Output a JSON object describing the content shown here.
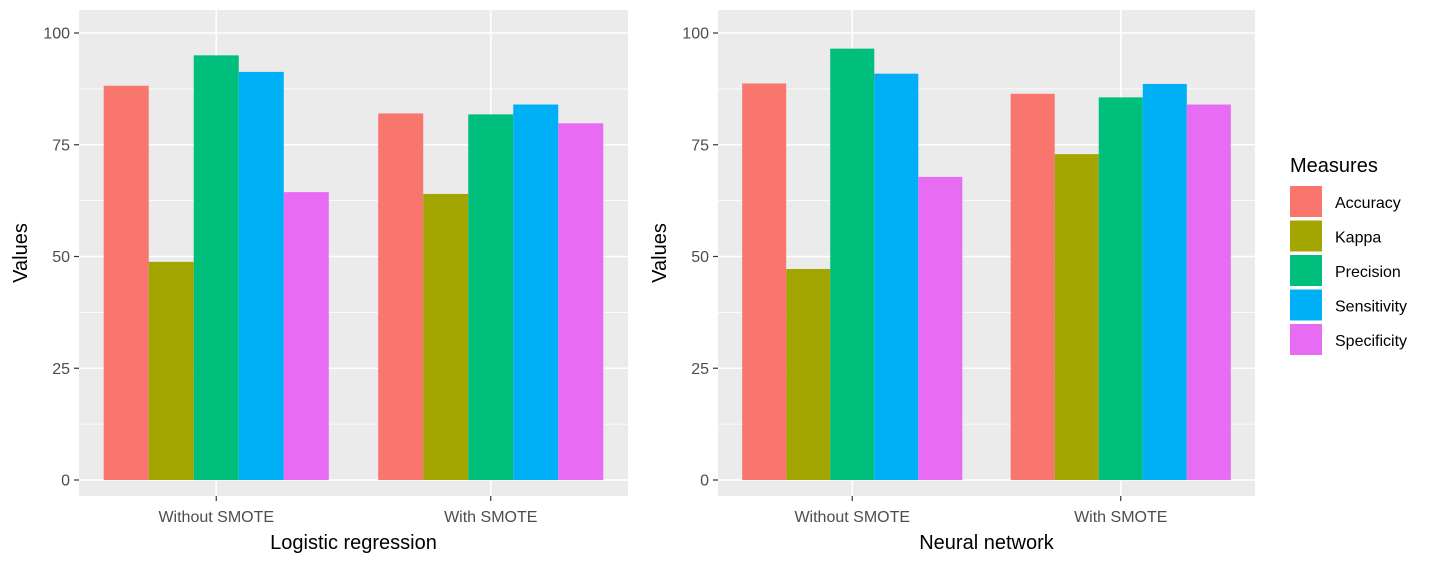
{
  "legend": {
    "title": "Measures",
    "position": "right",
    "items": [
      {
        "label": "Accuracy",
        "color": "#F8766D"
      },
      {
        "label": "Kappa",
        "color": "#A3A500"
      },
      {
        "label": "Precision",
        "color": "#00BF7D"
      },
      {
        "label": "Sensitivity",
        "color": "#00B0F6"
      },
      {
        "label": "Specificity",
        "color": "#E76BF3"
      }
    ]
  },
  "chart_data": [
    {
      "type": "bar",
      "title": "",
      "xlabel": "Logistic regression",
      "ylabel": "Values",
      "ylim": [
        0,
        100
      ],
      "yticks": [
        0,
        25,
        50,
        75,
        100
      ],
      "grid": true,
      "categories": [
        "Without SMOTE",
        "With SMOTE"
      ],
      "series": [
        {
          "name": "Accuracy",
          "color": "#F8766D",
          "values": [
            88.2,
            82.0
          ]
        },
        {
          "name": "Kappa",
          "color": "#A3A500",
          "values": [
            48.8,
            64.0
          ]
        },
        {
          "name": "Precision",
          "color": "#00BF7D",
          "values": [
            95.0,
            81.8
          ]
        },
        {
          "name": "Sensitivity",
          "color": "#00B0F6",
          "values": [
            91.3,
            84.0
          ]
        },
        {
          "name": "Specificity",
          "color": "#E76BF3",
          "values": [
            64.4,
            79.8
          ]
        }
      ]
    },
    {
      "type": "bar",
      "title": "",
      "xlabel": "Neural network",
      "ylabel": "Values",
      "ylim": [
        0,
        100
      ],
      "yticks": [
        0,
        25,
        50,
        75,
        100
      ],
      "grid": true,
      "categories": [
        "Without SMOTE",
        "With SMOTE"
      ],
      "series": [
        {
          "name": "Accuracy",
          "color": "#F8766D",
          "values": [
            88.7,
            86.4
          ]
        },
        {
          "name": "Kappa",
          "color": "#A3A500",
          "values": [
            47.2,
            72.9
          ]
        },
        {
          "name": "Precision",
          "color": "#00BF7D",
          "values": [
            96.5,
            85.6
          ]
        },
        {
          "name": "Sensitivity",
          "color": "#00B0F6",
          "values": [
            90.9,
            88.6
          ]
        },
        {
          "name": "Specificity",
          "color": "#E76BF3",
          "values": [
            67.8,
            84.0
          ]
        }
      ]
    }
  ]
}
